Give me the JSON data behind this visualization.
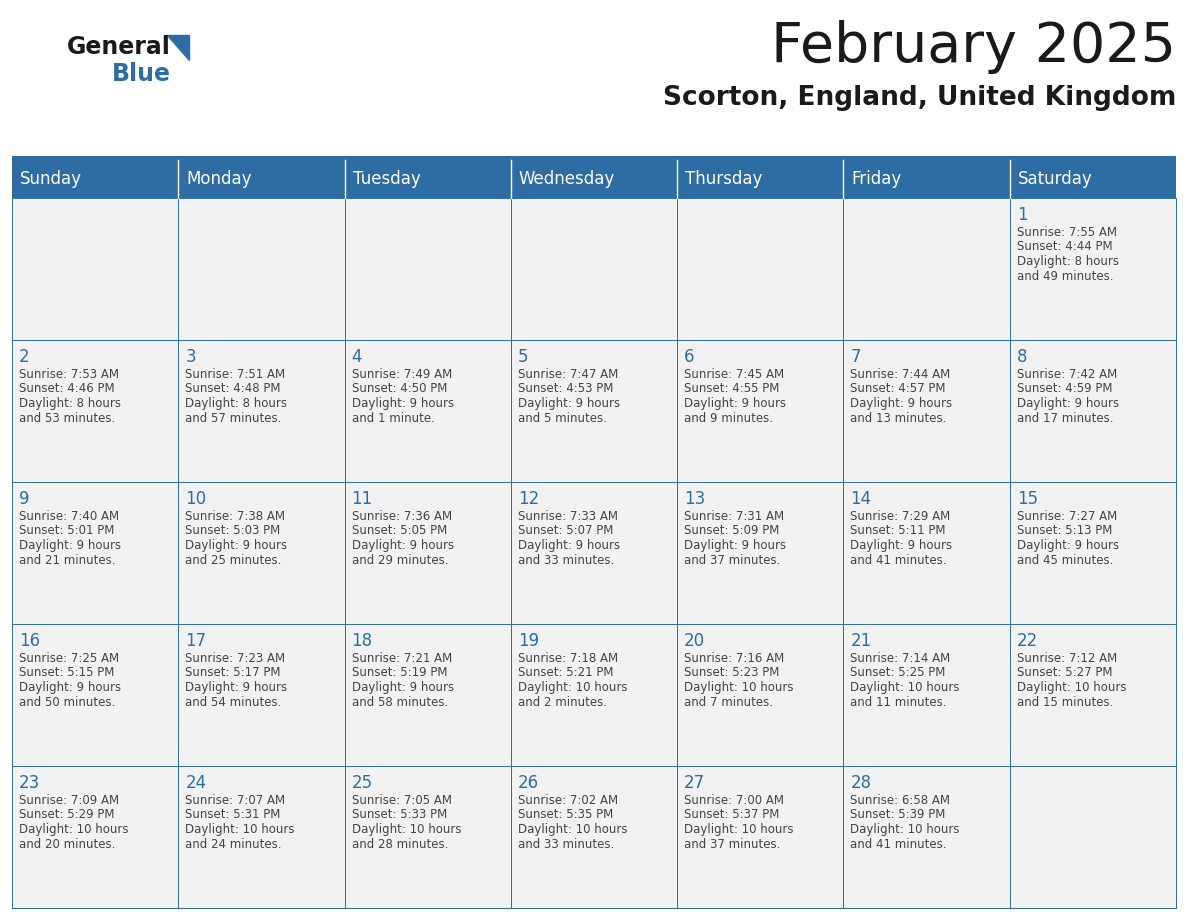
{
  "title": "February 2025",
  "subtitle": "Scorton, England, United Kingdom",
  "header_bg": "#2E6DA4",
  "header_text": "#FFFFFF",
  "cell_bg": "#F2F2F2",
  "border_color": "#2E6DA4",
  "day_headers": [
    "Sunday",
    "Monday",
    "Tuesday",
    "Wednesday",
    "Thursday",
    "Friday",
    "Saturday"
  ],
  "title_color": "#1a1a1a",
  "subtitle_color": "#1a1a1a",
  "cell_text_color": "#444444",
  "day_num_color": "#2E6DA4",
  "logo_general_color": "#1a1a1a",
  "logo_blue_color": "#2E6DA4",
  "logo_triangle_color": "#2E6DA4",
  "calendar": [
    [
      null,
      null,
      null,
      null,
      null,
      null,
      {
        "day": 1,
        "sunrise": "7:55 AM",
        "sunset": "4:44 PM",
        "daylight": "8 hours",
        "daylight2": "and 49 minutes."
      }
    ],
    [
      {
        "day": 2,
        "sunrise": "7:53 AM",
        "sunset": "4:46 PM",
        "daylight": "8 hours",
        "daylight2": "and 53 minutes."
      },
      {
        "day": 3,
        "sunrise": "7:51 AM",
        "sunset": "4:48 PM",
        "daylight": "8 hours",
        "daylight2": "and 57 minutes."
      },
      {
        "day": 4,
        "sunrise": "7:49 AM",
        "sunset": "4:50 PM",
        "daylight": "9 hours",
        "daylight2": "and 1 minute."
      },
      {
        "day": 5,
        "sunrise": "7:47 AM",
        "sunset": "4:53 PM",
        "daylight": "9 hours",
        "daylight2": "and 5 minutes."
      },
      {
        "day": 6,
        "sunrise": "7:45 AM",
        "sunset": "4:55 PM",
        "daylight": "9 hours",
        "daylight2": "and 9 minutes."
      },
      {
        "day": 7,
        "sunrise": "7:44 AM",
        "sunset": "4:57 PM",
        "daylight": "9 hours",
        "daylight2": "and 13 minutes."
      },
      {
        "day": 8,
        "sunrise": "7:42 AM",
        "sunset": "4:59 PM",
        "daylight": "9 hours",
        "daylight2": "and 17 minutes."
      }
    ],
    [
      {
        "day": 9,
        "sunrise": "7:40 AM",
        "sunset": "5:01 PM",
        "daylight": "9 hours",
        "daylight2": "and 21 minutes."
      },
      {
        "day": 10,
        "sunrise": "7:38 AM",
        "sunset": "5:03 PM",
        "daylight": "9 hours",
        "daylight2": "and 25 minutes."
      },
      {
        "day": 11,
        "sunrise": "7:36 AM",
        "sunset": "5:05 PM",
        "daylight": "9 hours",
        "daylight2": "and 29 minutes."
      },
      {
        "day": 12,
        "sunrise": "7:33 AM",
        "sunset": "5:07 PM",
        "daylight": "9 hours",
        "daylight2": "and 33 minutes."
      },
      {
        "day": 13,
        "sunrise": "7:31 AM",
        "sunset": "5:09 PM",
        "daylight": "9 hours",
        "daylight2": "and 37 minutes."
      },
      {
        "day": 14,
        "sunrise": "7:29 AM",
        "sunset": "5:11 PM",
        "daylight": "9 hours",
        "daylight2": "and 41 minutes."
      },
      {
        "day": 15,
        "sunrise": "7:27 AM",
        "sunset": "5:13 PM",
        "daylight": "9 hours",
        "daylight2": "and 45 minutes."
      }
    ],
    [
      {
        "day": 16,
        "sunrise": "7:25 AM",
        "sunset": "5:15 PM",
        "daylight": "9 hours",
        "daylight2": "and 50 minutes."
      },
      {
        "day": 17,
        "sunrise": "7:23 AM",
        "sunset": "5:17 PM",
        "daylight": "9 hours",
        "daylight2": "and 54 minutes."
      },
      {
        "day": 18,
        "sunrise": "7:21 AM",
        "sunset": "5:19 PM",
        "daylight": "9 hours",
        "daylight2": "and 58 minutes."
      },
      {
        "day": 19,
        "sunrise": "7:18 AM",
        "sunset": "5:21 PM",
        "daylight": "10 hours",
        "daylight2": "and 2 minutes."
      },
      {
        "day": 20,
        "sunrise": "7:16 AM",
        "sunset": "5:23 PM",
        "daylight": "10 hours",
        "daylight2": "and 7 minutes."
      },
      {
        "day": 21,
        "sunrise": "7:14 AM",
        "sunset": "5:25 PM",
        "daylight": "10 hours",
        "daylight2": "and 11 minutes."
      },
      {
        "day": 22,
        "sunrise": "7:12 AM",
        "sunset": "5:27 PM",
        "daylight": "10 hours",
        "daylight2": "and 15 minutes."
      }
    ],
    [
      {
        "day": 23,
        "sunrise": "7:09 AM",
        "sunset": "5:29 PM",
        "daylight": "10 hours",
        "daylight2": "and 20 minutes."
      },
      {
        "day": 24,
        "sunrise": "7:07 AM",
        "sunset": "5:31 PM",
        "daylight": "10 hours",
        "daylight2": "and 24 minutes."
      },
      {
        "day": 25,
        "sunrise": "7:05 AM",
        "sunset": "5:33 PM",
        "daylight": "10 hours",
        "daylight2": "and 28 minutes."
      },
      {
        "day": 26,
        "sunrise": "7:02 AM",
        "sunset": "5:35 PM",
        "daylight": "10 hours",
        "daylight2": "and 33 minutes."
      },
      {
        "day": 27,
        "sunrise": "7:00 AM",
        "sunset": "5:37 PM",
        "daylight": "10 hours",
        "daylight2": "and 37 minutes."
      },
      {
        "day": 28,
        "sunrise": "6:58 AM",
        "sunset": "5:39 PM",
        "daylight": "10 hours",
        "daylight2": "and 41 minutes."
      },
      null
    ]
  ],
  "figsize": [
    11.88,
    9.18
  ],
  "dpi": 100
}
